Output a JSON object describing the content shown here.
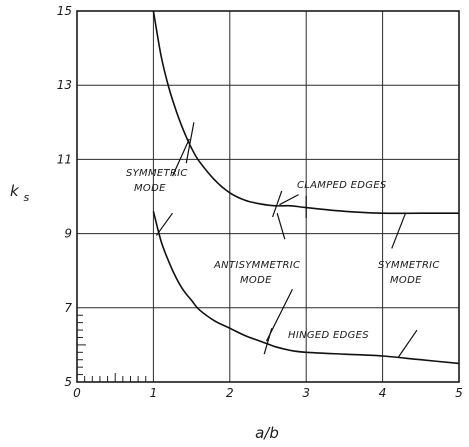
{
  "chart_data": {
    "type": "line",
    "title": "",
    "xlabel": "a/b",
    "ylabel_main": "k",
    "ylabel_sub": "s",
    "xlim": [
      0,
      5
    ],
    "ylim": [
      5,
      15
    ],
    "grid": true,
    "x_ticks": [
      "0",
      "1",
      "2",
      "3",
      "4",
      "5"
    ],
    "y_ticks": [
      "5",
      "7",
      "9",
      "11",
      "13",
      "15"
    ],
    "series": [
      {
        "name": "CLAMPED EDGES",
        "x": [
          1.0,
          1.1,
          1.2,
          1.3,
          1.4,
          1.5,
          1.6,
          1.8,
          2.0,
          2.2,
          2.4,
          2.6,
          2.8,
          3.0,
          3.5,
          4.0,
          4.5,
          5.0
        ],
        "y": [
          15.0,
          13.8,
          12.95,
          12.3,
          11.75,
          11.3,
          10.95,
          10.45,
          10.1,
          9.9,
          9.8,
          9.75,
          9.75,
          9.7,
          9.6,
          9.55,
          9.55,
          9.55
        ]
      },
      {
        "name": "HINGED EDGES",
        "x": [
          1.0,
          1.1,
          1.2,
          1.3,
          1.4,
          1.5,
          1.6,
          1.8,
          2.0,
          2.2,
          2.4,
          2.6,
          2.8,
          3.0,
          3.5,
          4.0,
          4.5,
          5.0
        ],
        "y": [
          9.6,
          8.8,
          8.25,
          7.8,
          7.45,
          7.2,
          6.95,
          6.65,
          6.45,
          6.25,
          6.1,
          5.95,
          5.85,
          5.8,
          5.75,
          5.7,
          5.6,
          5.5
        ]
      }
    ],
    "annotations": [
      {
        "lines": [
          "SYMMETRIC",
          "MODE"
        ]
      },
      {
        "lines": [
          "CLAMPED EDGES"
        ]
      },
      {
        "lines": [
          "ANTISYMMETRIC",
          "MODE"
        ]
      },
      {
        "lines": [
          "SYMMETRIC",
          "MODE"
        ]
      },
      {
        "lines": [
          "HINGED EDGES"
        ]
      }
    ]
  }
}
